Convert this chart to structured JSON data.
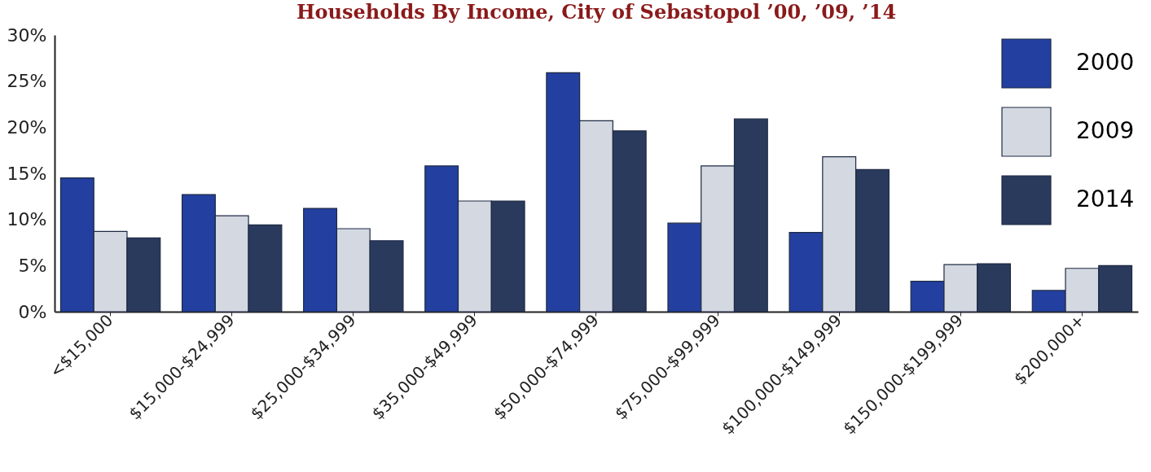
{
  "chart_data": {
    "type": "bar",
    "title": "Households By Income, City of Sebastopol ’00, ’09, ’14",
    "categories": [
      "<$15,000",
      "$15,000-$24,999",
      "$25,000-$34,999",
      "$35,000-$49,999",
      "$50,000-$74,999",
      "$75,000-$99,999",
      "$100,000-$149,999",
      "$150,000-$199,999",
      "$200,000+"
    ],
    "series": [
      {
        "name": "2000",
        "color": "#2340a0",
        "values": [
          14.5,
          12.7,
          11.2,
          15.8,
          25.9,
          9.6,
          8.6,
          3.3,
          2.3
        ]
      },
      {
        "name": "2009",
        "color": "#d4d8e0",
        "values": [
          8.7,
          10.4,
          9.0,
          12.0,
          20.7,
          15.8,
          16.8,
          5.1,
          4.7
        ]
      },
      {
        "name": "2014",
        "color": "#2a3a5c",
        "values": [
          8.0,
          9.4,
          7.7,
          12.0,
          19.6,
          20.9,
          15.4,
          5.2,
          5.0
        ]
      }
    ],
    "ylim": [
      0,
      30
    ],
    "yticks": [
      {
        "value": 0,
        "label": "0%"
      },
      {
        "value": 5,
        "label": "5%"
      },
      {
        "value": 10,
        "label": "10%"
      },
      {
        "value": 15,
        "label": "15%"
      },
      {
        "value": 20,
        "label": "20%"
      },
      {
        "value": 25,
        "label": "25%"
      },
      {
        "value": 30,
        "label": "30%"
      }
    ],
    "grid": false,
    "legend": "top right"
  }
}
